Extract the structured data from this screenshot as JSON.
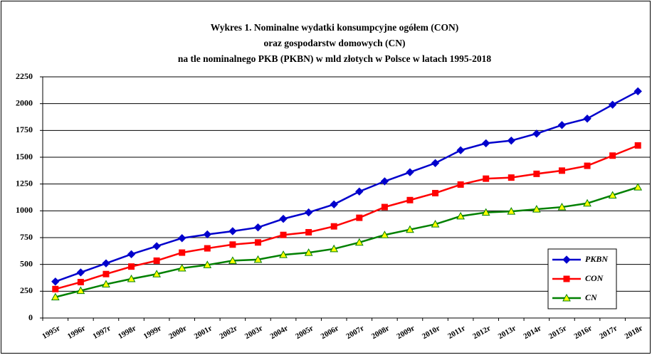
{
  "chart_data": {
    "type": "line",
    "title": [
      "Wykres 1. Nominalne wydatki konsumpcyjne ogółem (CON)",
      "oraz gospodarstw domowych (CN)",
      "na tle nominalnego PKB (PKBN) w mld złotych w Polsce w latach 1995-2018"
    ],
    "categories": [
      "1995r",
      "1996r",
      "1997r",
      "1998r",
      "1999r",
      "2000r",
      "2001r",
      "2002r",
      "2003r",
      "2004r",
      "2005r",
      "2006r",
      "2007r",
      "2008r",
      "2009r",
      "2010r",
      "2011r",
      "2012r",
      "2013r",
      "2014r",
      "2015r",
      "2016r",
      "2017r",
      "2018r"
    ],
    "series": [
      {
        "name": "PKBN",
        "color": "#0000cc",
        "marker": "diamond",
        "marker_fill": "#0000cc",
        "values": [
          340,
          425,
          510,
          595,
          670,
          745,
          780,
          810,
          845,
          925,
          985,
          1060,
          1180,
          1275,
          1360,
          1445,
          1565,
          1630,
          1655,
          1720,
          1800,
          1860,
          1990,
          2115
        ]
      },
      {
        "name": "CON",
        "color": "#ff0000",
        "marker": "square",
        "marker_fill": "#ff0000",
        "values": [
          270,
          335,
          410,
          480,
          535,
          610,
          650,
          685,
          705,
          775,
          800,
          855,
          935,
          1035,
          1100,
          1165,
          1245,
          1300,
          1310,
          1345,
          1375,
          1420,
          1515,
          1610
        ]
      },
      {
        "name": "CN",
        "color": "#008000",
        "marker": "triangle",
        "marker_fill": "#ffff00",
        "values": [
          195,
          255,
          315,
          365,
          410,
          465,
          495,
          535,
          545,
          590,
          610,
          645,
          705,
          775,
          825,
          875,
          950,
          985,
          995,
          1015,
          1035,
          1070,
          1145,
          1220
        ]
      }
    ],
    "ylim": [
      0,
      2250
    ],
    "yticks": [
      0,
      250,
      500,
      750,
      1000,
      1250,
      1500,
      1750,
      2000,
      2250
    ],
    "grid": true,
    "legend": "lower right"
  }
}
